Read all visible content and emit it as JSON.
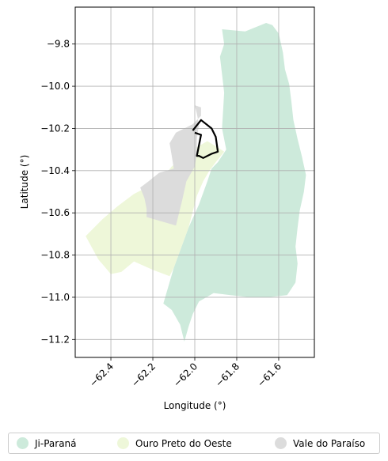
{
  "chart_data": {
    "type": "map",
    "xlabel": "Longitude (°)",
    "ylabel": "Latitude (°)",
    "xlim": [
      -62.57,
      -61.43
    ],
    "ylim": [
      -11.285,
      -9.625
    ],
    "xticks": [
      -62.4,
      -62.2,
      -62.0,
      -61.8,
      -61.6
    ],
    "xtick_labels": [
      "−62.4",
      "−62.2",
      "−62.0",
      "−61.8",
      "−61.6"
    ],
    "yticks": [
      -9.8,
      -10.0,
      -10.2,
      -10.4,
      -10.6,
      -10.8,
      -11.0,
      -11.2
    ],
    "ytick_labels": [
      "−9.8",
      "−10.0",
      "−10.2",
      "−10.4",
      "−10.6",
      "−10.8",
      "−11.0",
      "−11.2"
    ],
    "grid": true,
    "legend_position": "bottom-center",
    "regions": [
      {
        "name": "Ji-Paraná",
        "color": "#cdeadb",
        "coordinates": [
          [
            -61.87,
            -9.73
          ],
          [
            -61.76,
            -9.74
          ],
          [
            -61.66,
            -9.7
          ],
          [
            -61.63,
            -9.71
          ],
          [
            -61.6,
            -9.75
          ],
          [
            -61.58,
            -9.84
          ],
          [
            -61.57,
            -9.92
          ],
          [
            -61.55,
            -9.99
          ],
          [
            -61.54,
            -10.07
          ],
          [
            -61.53,
            -10.16
          ],
          [
            -61.51,
            -10.25
          ],
          [
            -61.49,
            -10.33
          ],
          [
            -61.47,
            -10.42
          ],
          [
            -61.48,
            -10.5
          ],
          [
            -61.5,
            -10.59
          ],
          [
            -61.51,
            -10.67
          ],
          [
            -61.52,
            -10.76
          ],
          [
            -61.51,
            -10.84
          ],
          [
            -61.52,
            -10.93
          ],
          [
            -61.56,
            -10.99
          ],
          [
            -61.65,
            -11.0
          ],
          [
            -61.74,
            -11.0
          ],
          [
            -61.83,
            -10.99
          ],
          [
            -61.91,
            -10.98
          ],
          [
            -61.98,
            -11.02
          ],
          [
            -62.01,
            -11.08
          ],
          [
            -62.03,
            -11.14
          ],
          [
            -62.05,
            -11.21
          ],
          [
            -62.07,
            -11.13
          ],
          [
            -62.11,
            -11.06
          ],
          [
            -62.15,
            -11.03
          ],
          [
            -62.1,
            -10.86
          ],
          [
            -62.03,
            -10.67
          ],
          [
            -61.98,
            -10.56
          ],
          [
            -61.94,
            -10.45
          ],
          [
            -61.92,
            -10.39
          ],
          [
            -61.89,
            -10.36
          ],
          [
            -61.85,
            -10.3
          ],
          [
            -61.87,
            -10.2
          ],
          [
            -61.86,
            -10.03
          ],
          [
            -61.88,
            -9.86
          ],
          [
            -61.86,
            -9.8
          ]
        ]
      },
      {
        "name": "Ouro Preto do Oeste",
        "color": "#eef7d9",
        "coordinates": [
          [
            -62.01,
            -10.3
          ],
          [
            -61.94,
            -10.26
          ],
          [
            -61.89,
            -10.29
          ],
          [
            -61.86,
            -10.31
          ],
          [
            -61.9,
            -10.36
          ],
          [
            -61.93,
            -10.4
          ],
          [
            -61.96,
            -10.45
          ],
          [
            -61.99,
            -10.52
          ],
          [
            -62.03,
            -10.67
          ],
          [
            -62.1,
            -10.86
          ],
          [
            -62.12,
            -10.9
          ],
          [
            -62.2,
            -10.87
          ],
          [
            -62.29,
            -10.83
          ],
          [
            -62.35,
            -10.88
          ],
          [
            -62.4,
            -10.89
          ],
          [
            -62.46,
            -10.82
          ],
          [
            -62.52,
            -10.71
          ],
          [
            -62.44,
            -10.63
          ],
          [
            -62.37,
            -10.57
          ],
          [
            -62.29,
            -10.51
          ],
          [
            -62.21,
            -10.47
          ],
          [
            -62.15,
            -10.43
          ],
          [
            -62.11,
            -10.38
          ],
          [
            -62.06,
            -10.34
          ]
        ]
      },
      {
        "name": "Vale do Paraíso",
        "color": "#dcdcdc",
        "coordinates": [
          [
            -62.0,
            -10.09
          ],
          [
            -61.97,
            -10.1
          ],
          [
            -61.97,
            -10.14
          ],
          [
            -62.01,
            -10.18
          ],
          [
            -62.05,
            -10.2
          ],
          [
            -62.09,
            -10.22
          ],
          [
            -62.12,
            -10.27
          ],
          [
            -62.11,
            -10.33
          ],
          [
            -62.1,
            -10.39
          ],
          [
            -62.17,
            -10.41
          ],
          [
            -62.22,
            -10.45
          ],
          [
            -62.26,
            -10.48
          ],
          [
            -62.24,
            -10.53
          ],
          [
            -62.23,
            -10.58
          ],
          [
            -62.23,
            -10.62
          ],
          [
            -62.09,
            -10.66
          ],
          [
            -62.06,
            -10.54
          ],
          [
            -62.04,
            -10.45
          ],
          [
            -62.0,
            -10.38
          ],
          [
            -61.99,
            -10.32
          ],
          [
            -61.99,
            -10.25
          ],
          [
            -61.98,
            -10.18
          ],
          [
            -61.99,
            -10.13
          ]
        ]
      }
    ],
    "outline": {
      "color": "#000000",
      "coordinates": [
        [
          -62.01,
          -10.21
        ],
        [
          -61.97,
          -10.16
        ],
        [
          -61.92,
          -10.2
        ],
        [
          -61.9,
          -10.24
        ],
        [
          -61.89,
          -10.31
        ],
        [
          -61.92,
          -10.32
        ],
        [
          -61.96,
          -10.34
        ],
        [
          -61.98,
          -10.33
        ],
        [
          -61.99,
          -10.33
        ],
        [
          -61.97,
          -10.23
        ],
        [
          -62.0,
          -10.22
        ]
      ]
    }
  },
  "legend": {
    "items": [
      {
        "label": "Ji-Paraná",
        "color": "#cdeadb"
      },
      {
        "label": "Ouro Preto do Oeste",
        "color": "#eef7d9"
      },
      {
        "label": "Vale do Paraíso",
        "color": "#dcdcdc"
      }
    ]
  }
}
